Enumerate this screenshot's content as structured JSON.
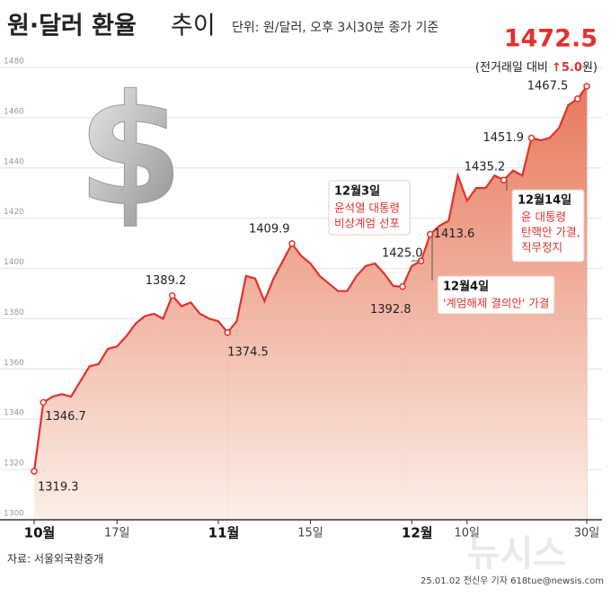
{
  "chart_data": {
    "type": "line",
    "title": "원·달러 환율",
    "title_suffix": "추이",
    "subtitle": "단위: 원/달러, 오후 3시30분 종가 기준",
    "change_prefix": "(전거래일 대비 ",
    "change_value": "↑5.0",
    "change_suffix": "원)",
    "icon": "$",
    "categories": [
      "10월",
      null,
      null,
      null,
      null,
      null,
      null,
      null,
      null,
      "17일",
      null,
      null,
      null,
      null,
      null,
      null,
      null,
      null,
      null,
      null,
      "11월",
      null,
      null,
      null,
      null,
      null,
      null,
      null,
      null,
      null,
      "15일",
      null,
      null,
      null,
      null,
      null,
      null,
      null,
      null,
      null,
      null,
      "12월",
      null,
      null,
      null,
      null,
      null,
      "10일",
      null,
      null,
      null,
      null,
      null,
      null,
      null,
      null,
      null,
      null,
      null,
      null,
      "30일"
    ],
    "values": [
      1319.3,
      1346.7,
      1349,
      1350,
      1349,
      1355,
      1361,
      1362,
      1368,
      1369,
      1373,
      1378,
      1381,
      1382,
      1380,
      1389.2,
      1385,
      1386.5,
      1382,
      1380,
      1379,
      1374.5,
      1379,
      1397,
      1396,
      1387,
      1396,
      1403,
      1409.9,
      1405,
      1402,
      1397,
      1394,
      1391,
      1391,
      1397,
      1401,
      1402,
      1398,
      1393,
      1392.8,
      1401,
      1403,
      1413.6,
      1417,
      1419,
      1437,
      1427,
      1432,
      1432,
      1437,
      1435.2,
      1439,
      1437,
      1451.9,
      1451,
      1452,
      1456,
      1465,
      1467.5,
      1472.5
    ],
    "color": "#e2312c",
    "ylim": [
      1300,
      1480
    ],
    "yticks": [
      1300,
      1320,
      1340,
      1360,
      1380,
      1400,
      1420,
      1440,
      1460,
      1480
    ],
    "grid": true,
    "extra_label": "1425.0",
    "callouts": [
      {
        "title": "12월3일",
        "lines": [
          "윤석열 대통령",
          "비상계엄 선포"
        ]
      },
      {
        "title": "12월4일",
        "lines": [
          "'계엄해제 결의안' 가결"
        ]
      },
      {
        "title": "12월14일",
        "lines": [
          "윤 대통령",
          "탄핵안 가결,",
          "직무정지"
        ]
      }
    ],
    "source": "자료: 서울외국환중개",
    "credit": "25.01.02 전신우 기자 618tue@newsis.com",
    "watermark": "뉴시스"
  }
}
